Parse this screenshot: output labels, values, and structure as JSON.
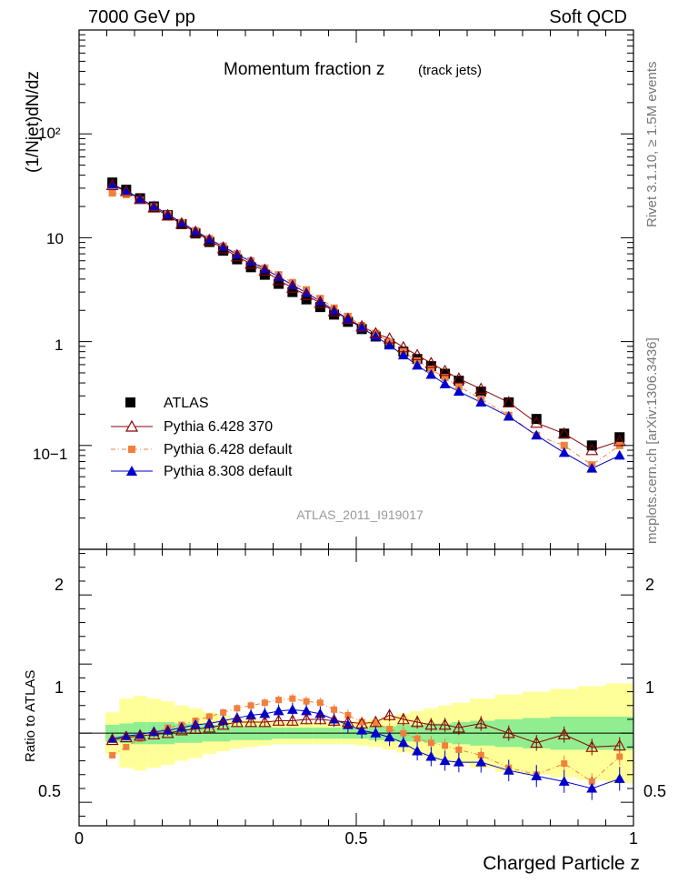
{
  "header": {
    "energy_label": "7000 GeV pp",
    "process_label": "Soft QCD"
  },
  "side_labels": {
    "generator": "Rivet 3.1.10, ≥ 1.5M events",
    "source": "mcplots.cern.ch [arXiv:1306.3436]"
  },
  "analysis_id": "ATLAS_2011_I919017",
  "chart_data": [
    {
      "type": "scatter",
      "title": "Momentum fraction z",
      "subtitle": "(track jets)",
      "xlabel": "Charged Particle z",
      "ylabel": "(1/Njet)dN/dz",
      "yscale": "log",
      "xlim": [
        0,
        1
      ],
      "ylim": [
        0.01,
        1000
      ],
      "y_tick_labels": [
        "10−1",
        "1",
        "10",
        "10²"
      ],
      "legend_position": "lower-left",
      "x": [
        0.06,
        0.085,
        0.11,
        0.135,
        0.16,
        0.185,
        0.21,
        0.235,
        0.26,
        0.285,
        0.31,
        0.335,
        0.36,
        0.385,
        0.41,
        0.435,
        0.46,
        0.485,
        0.51,
        0.535,
        0.56,
        0.585,
        0.61,
        0.635,
        0.66,
        0.685,
        0.725,
        0.775,
        0.825,
        0.875,
        0.925,
        0.975
      ],
      "series": [
        {
          "name": "ATLAS",
          "marker": "square",
          "color": "#000000",
          "values": [
            34,
            29,
            24,
            20,
            16.5,
            13.5,
            11,
            9.1,
            7.5,
            6.2,
            5.2,
            4.4,
            3.6,
            3.0,
            2.55,
            2.15,
            1.82,
            1.55,
            1.32,
            1.12,
            0.95,
            0.8,
            0.68,
            0.58,
            0.49,
            0.42,
            0.33,
            0.26,
            0.18,
            0.13,
            0.1,
            0.12
          ]
        },
        {
          "name": "Pythia 6.428 370",
          "marker": "open-triangle",
          "color": "#8b0000",
          "values": [
            32,
            28,
            23.5,
            19.5,
            16.3,
            13.6,
            11.3,
            9.4,
            7.9,
            6.6,
            5.6,
            4.8,
            3.9,
            3.3,
            2.8,
            2.35,
            1.95,
            1.65,
            1.4,
            1.2,
            1.07,
            0.88,
            0.74,
            0.62,
            0.52,
            0.44,
            0.35,
            0.26,
            0.165,
            0.13,
            0.09,
            0.11
          ]
        },
        {
          "name": "Pythia 6.428 default",
          "marker": "filled-square-small",
          "color": "#f0803c",
          "values": [
            27,
            26,
            23,
            19.8,
            16.8,
            14.0,
            11.7,
            9.8,
            8.3,
            7.0,
            6.0,
            5.1,
            4.4,
            3.7,
            3.15,
            2.6,
            2.1,
            1.75,
            1.42,
            1.2,
            0.98,
            0.8,
            0.65,
            0.54,
            0.45,
            0.37,
            0.28,
            0.195,
            0.125,
            0.1,
            0.065,
            0.1
          ]
        },
        {
          "name": "Pythia 8.308 default",
          "marker": "filled-triangle",
          "color": "#0000cc",
          "values": [
            32.5,
            28.5,
            23.7,
            20.2,
            16.8,
            14.0,
            11.6,
            9.7,
            8.2,
            6.9,
            5.9,
            5.0,
            4.2,
            3.5,
            2.95,
            2.45,
            2.0,
            1.65,
            1.35,
            1.12,
            0.92,
            0.74,
            0.59,
            0.48,
            0.39,
            0.33,
            0.26,
            0.19,
            0.125,
            0.085,
            0.06,
            0.08
          ]
        }
      ]
    },
    {
      "type": "scatter",
      "ylabel": "Ratio to ATLAS",
      "xlabel": "Charged Particle z",
      "xlim": [
        0,
        1
      ],
      "ylim": [
        0.33,
        2.33
      ],
      "x_tick_labels": [
        "0",
        "0.5",
        "1"
      ],
      "y_tick_labels": [
        "0.5",
        "1",
        "2"
      ],
      "bands": {
        "inner_color": "#90ee90",
        "outer_color": "#ffff99",
        "inner": [
          0.06,
          0.07,
          0.08,
          0.08,
          0.08,
          0.07,
          0.07,
          0.06,
          0.06,
          0.05,
          0.05,
          0.05,
          0.04,
          0.04,
          0.04,
          0.04,
          0.04,
          0.04,
          0.04,
          0.05,
          0.05,
          0.06,
          0.06,
          0.07,
          0.07,
          0.08,
          0.09,
          0.1,
          0.11,
          0.12,
          0.12,
          0.12
        ],
        "outer": [
          0.15,
          0.25,
          0.27,
          0.25,
          0.23,
          0.2,
          0.18,
          0.15,
          0.13,
          0.11,
          0.1,
          0.09,
          0.08,
          0.08,
          0.08,
          0.08,
          0.08,
          0.08,
          0.09,
          0.1,
          0.12,
          0.14,
          0.16,
          0.18,
          0.2,
          0.22,
          0.25,
          0.28,
          0.3,
          0.32,
          0.34,
          0.36
        ]
      },
      "series": [
        {
          "name": "Pythia 6.428 370",
          "values": [
            0.95,
            0.97,
            0.98,
            0.99,
            1.0,
            1.02,
            1.03,
            1.04,
            1.06,
            1.08,
            1.08,
            1.08,
            1.09,
            1.09,
            1.1,
            1.1,
            1.09,
            1.08,
            1.07,
            1.08,
            1.13,
            1.1,
            1.08,
            1.06,
            1.06,
            1.04,
            1.07,
            1.0,
            0.93,
            0.99,
            0.9,
            0.91
          ]
        },
        {
          "name": "Pythia 6.428 default",
          "values": [
            0.84,
            0.9,
            0.96,
            1.0,
            1.04,
            1.06,
            1.09,
            1.12,
            1.15,
            1.18,
            1.2,
            1.22,
            1.24,
            1.25,
            1.23,
            1.22,
            1.17,
            1.13,
            1.08,
            1.07,
            1.03,
            1.0,
            0.96,
            0.93,
            0.91,
            0.88,
            0.84,
            0.75,
            0.7,
            0.78,
            0.65,
            0.83
          ]
        },
        {
          "name": "Pythia 8.308 default",
          "values": [
            0.96,
            0.98,
            0.99,
            1.01,
            1.02,
            1.04,
            1.06,
            1.07,
            1.09,
            1.11,
            1.13,
            1.14,
            1.16,
            1.17,
            1.16,
            1.14,
            1.1,
            1.06,
            1.02,
            1.0,
            0.97,
            0.93,
            0.87,
            0.83,
            0.8,
            0.79,
            0.79,
            0.73,
            0.69,
            0.65,
            0.6,
            0.67
          ]
        }
      ]
    }
  ]
}
